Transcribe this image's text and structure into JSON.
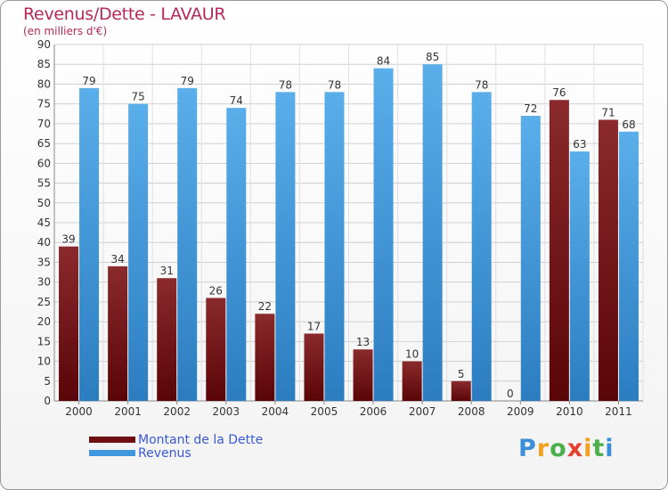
{
  "title": "Revenus/Dette - LAVAUR",
  "subtitle": "(en milliers d'€)",
  "logo": {
    "text": "Proxiti"
  },
  "colors": {
    "dette": "#6e0f12",
    "revenus": "#3f97dd",
    "title": "#b5285a",
    "legend_text": "#3a59d6"
  },
  "chart_data": {
    "type": "bar",
    "title": "Revenus/Dette - LAVAUR",
    "subtitle": "(en milliers d'€)",
    "categories": [
      "2000",
      "2001",
      "2002",
      "2003",
      "2004",
      "2005",
      "2006",
      "2007",
      "2008",
      "2009",
      "2010",
      "2011"
    ],
    "series": [
      {
        "name": "Montant de la Dette",
        "values": [
          39,
          34,
          31,
          26,
          22,
          17,
          13,
          10,
          5,
          0,
          76,
          71
        ]
      },
      {
        "name": "Revenus",
        "values": [
          79,
          75,
          79,
          74,
          78,
          78,
          84,
          85,
          78,
          72,
          63,
          68
        ]
      }
    ],
    "ylim": [
      0,
      90
    ],
    "yticks": [
      0,
      5,
      10,
      15,
      20,
      25,
      30,
      35,
      40,
      45,
      50,
      55,
      60,
      65,
      70,
      75,
      80,
      85,
      90
    ],
    "grid": true,
    "legend_position": "bottom-left"
  }
}
